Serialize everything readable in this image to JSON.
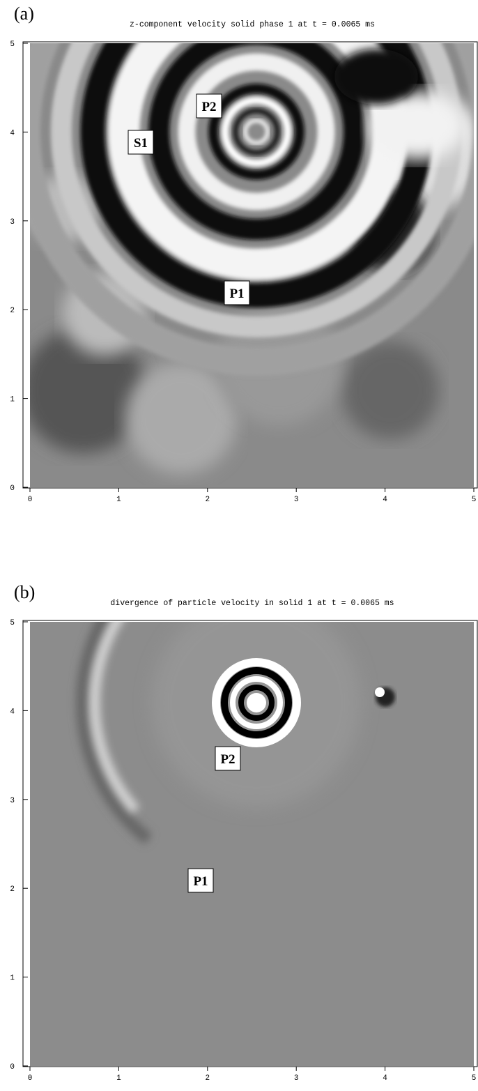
{
  "panels": [
    {
      "label": "(a)",
      "title": "z-component velocity solid phase 1 at  t = 0.0065 ms",
      "xlim": [
        0,
        5
      ],
      "ylim": [
        0,
        5
      ],
      "xticks": [
        0,
        1,
        2,
        3,
        4,
        5
      ],
      "yticks": [
        0,
        1,
        2,
        3,
        4,
        5
      ],
      "annotations": [
        "P2",
        "S1",
        "P1"
      ]
    },
    {
      "label": "(b)",
      "title": "divergence of particle velocity in solid  1 at  t = 0.0065 ms",
      "xlim": [
        0,
        5
      ],
      "ylim": [
        0,
        5
      ],
      "xticks": [
        0,
        1,
        2,
        3,
        4,
        5
      ],
      "yticks": [
        0,
        1,
        2,
        3,
        4,
        5
      ],
      "annotations": [
        "P2",
        "P1"
      ]
    }
  ]
}
